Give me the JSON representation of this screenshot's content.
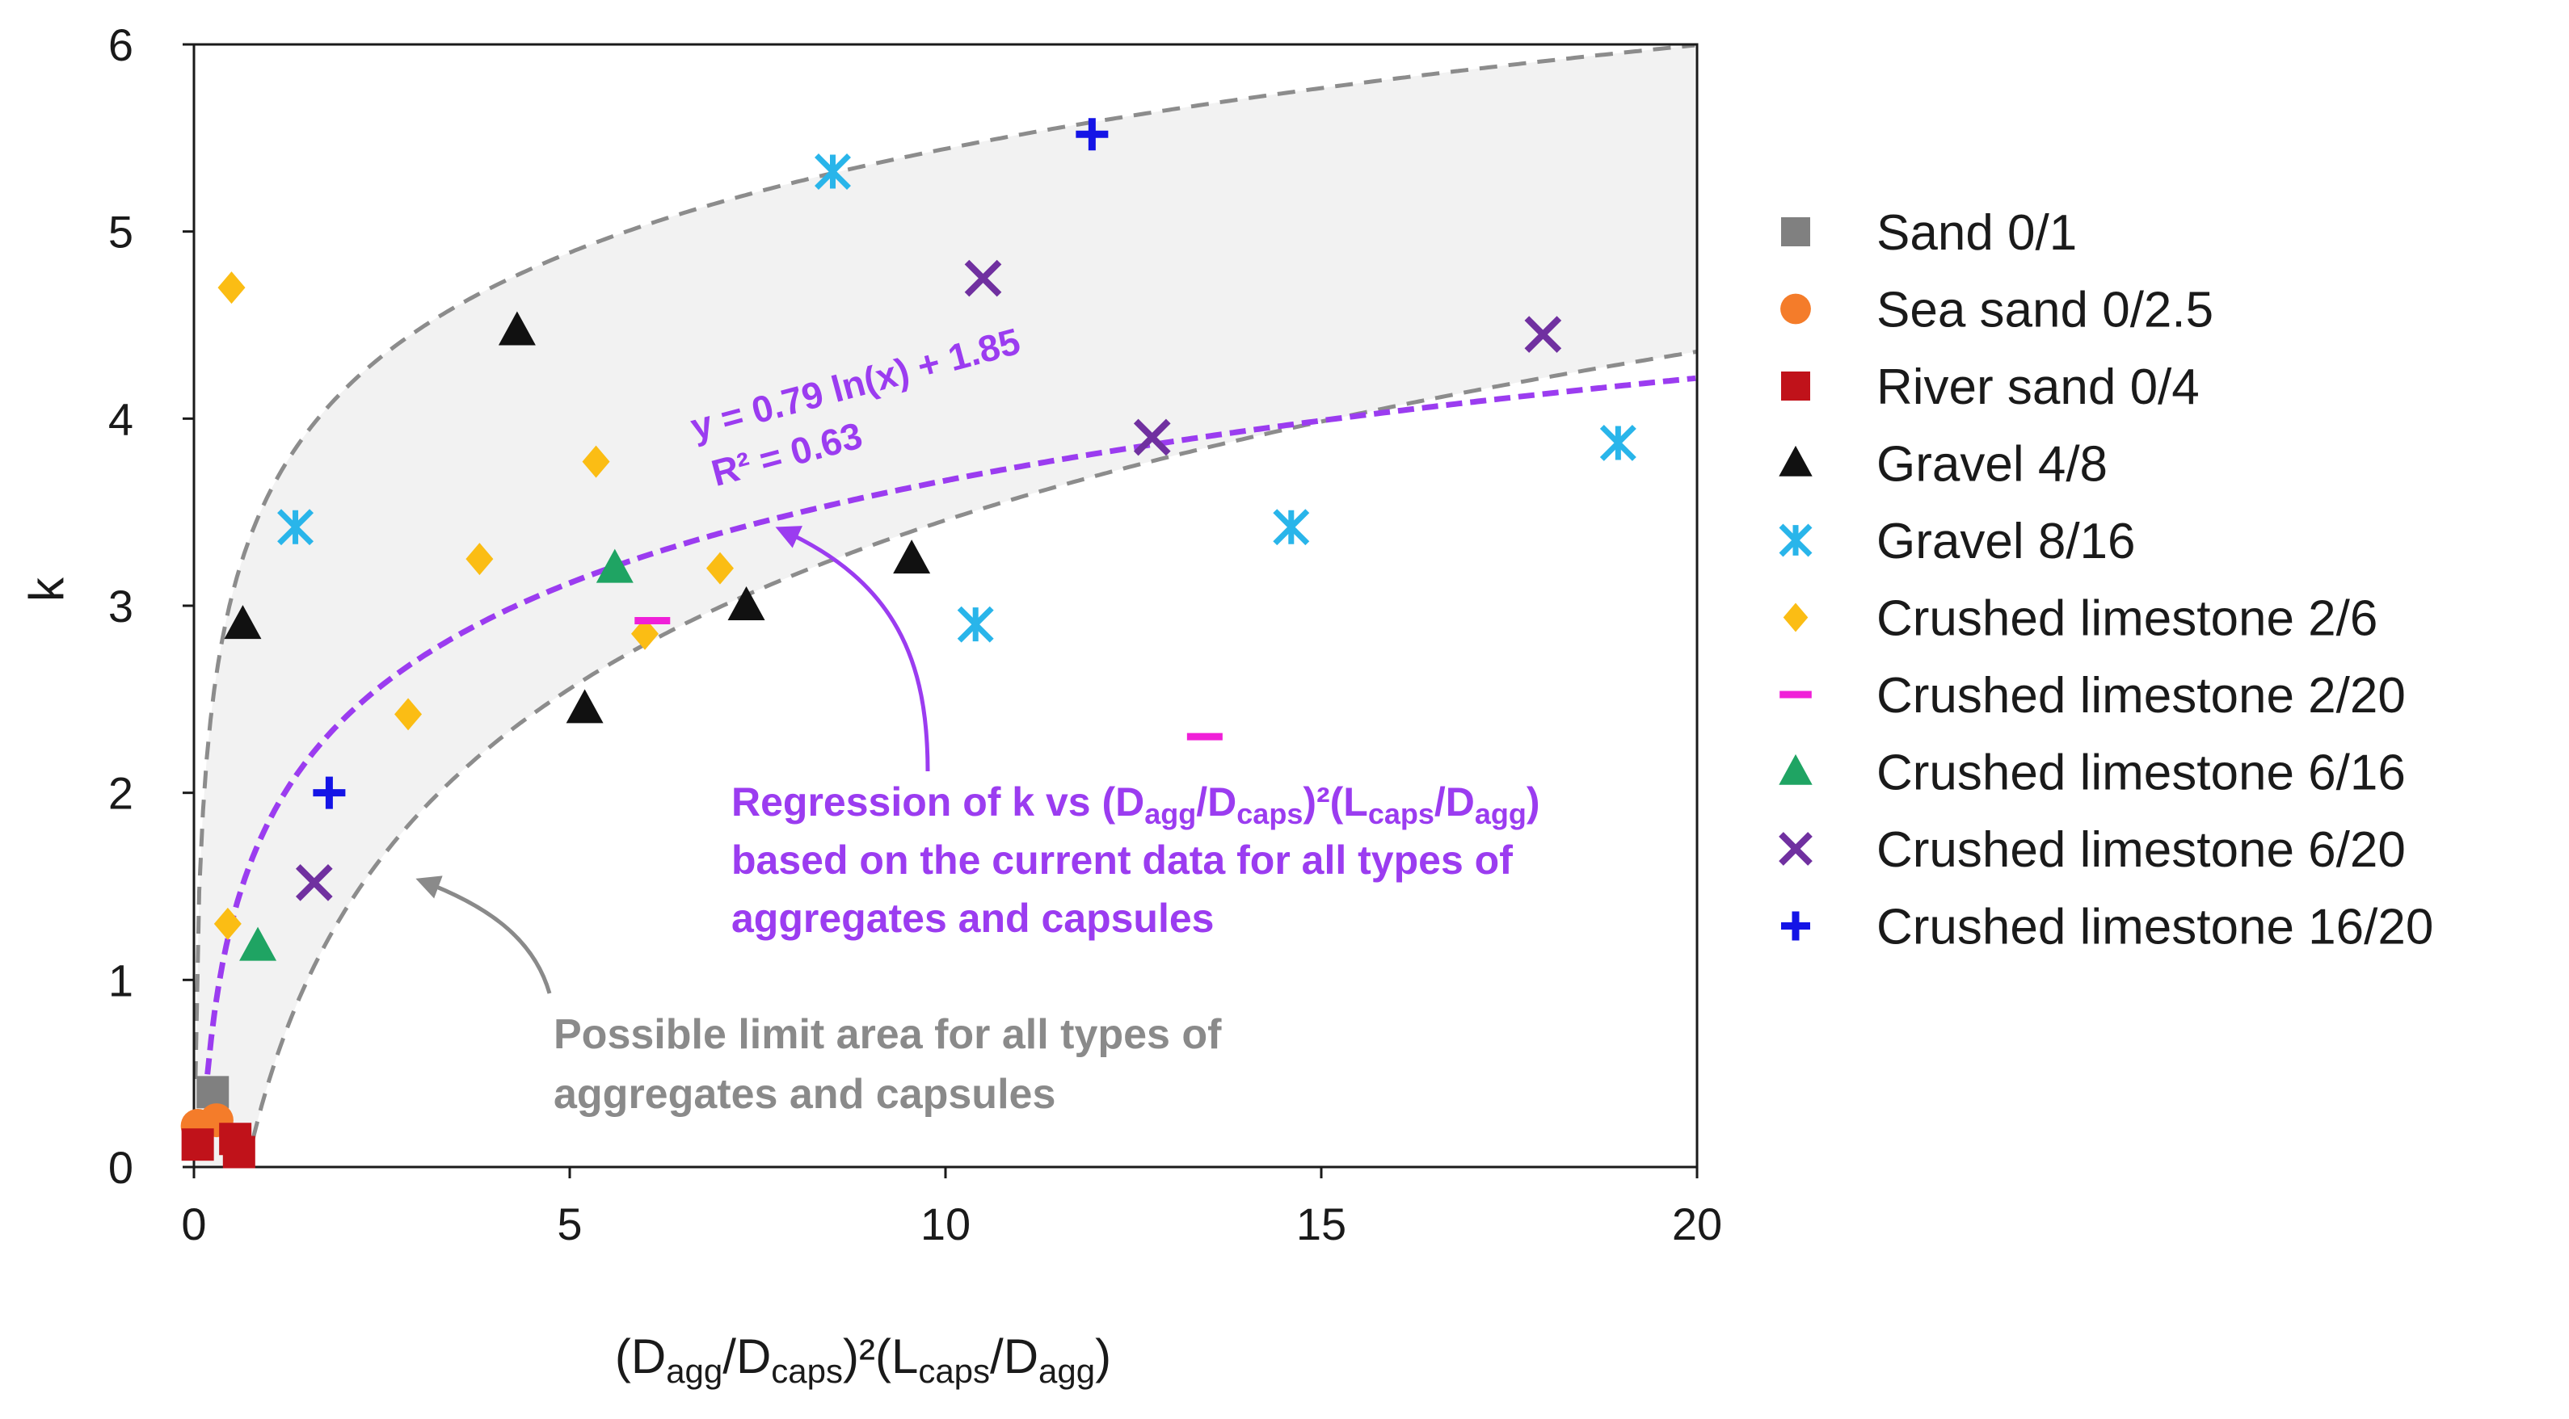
{
  "chart_data": {
    "type": "scatter",
    "title": "",
    "xlabel_parts": {
      "open": "(D",
      "agg1": "agg",
      "slash1": "/D",
      "caps1": "caps",
      "close1": ")²(L",
      "caps2": "caps",
      "slash2": "/D",
      "agg2": "agg",
      "close2": ")"
    },
    "ylabel": "k",
    "xlim": [
      0,
      20
    ],
    "ylim": [
      0,
      6
    ],
    "xticks": [
      "0",
      "5",
      "10",
      "15",
      "20"
    ],
    "yticks": [
      "0",
      "1",
      "2",
      "3",
      "4",
      "5",
      "6"
    ],
    "grid": false,
    "legend_position": "right",
    "series": [
      {
        "name": "Sand 0/1",
        "marker": "square",
        "color": "#808080",
        "points": [
          [
            0.25,
            0.4
          ]
        ]
      },
      {
        "name": "Sea sand 0/2.5",
        "marker": "circle",
        "color": "#f47c2a",
        "points": [
          [
            0.05,
            0.22
          ],
          [
            0.3,
            0.25
          ]
        ]
      },
      {
        "name": "River sand 0/4",
        "marker": "square",
        "color": "#c0121a",
        "points": [
          [
            0.05,
            0.12
          ],
          [
            0.55,
            0.15
          ],
          [
            0.6,
            0.08
          ]
        ]
      },
      {
        "name": "Gravel 4/8",
        "marker": "triangle",
        "color": "#111111",
        "points": [
          [
            0.65,
            2.9
          ],
          [
            4.3,
            4.47
          ],
          [
            5.2,
            2.45
          ],
          [
            7.35,
            3.0
          ],
          [
            9.55,
            3.25
          ]
        ]
      },
      {
        "name": "Gravel 8/16",
        "marker": "asterisk",
        "color": "#29b5ea",
        "points": [
          [
            1.35,
            3.42
          ],
          [
            8.5,
            5.32
          ],
          [
            10.4,
            2.9
          ],
          [
            14.6,
            3.42
          ],
          [
            18.95,
            3.87
          ]
        ]
      },
      {
        "name": "Crushed limestone 2/6",
        "marker": "diamond",
        "color": "#fbbd14",
        "points": [
          [
            0.5,
            4.7
          ],
          [
            0.45,
            1.3
          ],
          [
            2.85,
            2.42
          ],
          [
            3.8,
            3.25
          ],
          [
            5.35,
            3.77
          ],
          [
            6.0,
            2.85
          ],
          [
            7.0,
            3.2
          ]
        ]
      },
      {
        "name": "Crushed limestone 2/20",
        "marker": "dash",
        "color": "#f020d8",
        "points": [
          [
            6.1,
            2.92
          ],
          [
            13.45,
            2.3
          ]
        ]
      },
      {
        "name": "Crushed limestone 6/16",
        "marker": "triangle",
        "color": "#1fa463",
        "points": [
          [
            0.85,
            1.18
          ],
          [
            5.6,
            3.2
          ]
        ]
      },
      {
        "name": "Crushed limestone 6/20",
        "marker": "x",
        "color": "#7030a0",
        "points": [
          [
            1.6,
            1.52
          ],
          [
            10.5,
            4.75
          ],
          [
            12.75,
            3.9
          ],
          [
            17.95,
            4.45
          ]
        ]
      },
      {
        "name": "Crushed limestone 16/20",
        "marker": "plus",
        "color": "#1414e6",
        "points": [
          [
            1.8,
            2.0
          ],
          [
            11.95,
            5.52
          ]
        ]
      }
    ],
    "regression": {
      "equation": "y = 0.79 ln(x) + 1.85",
      "r2": "R² = 0.63",
      "slope": 0.79,
      "intercept": 1.85,
      "color": "#9b3cf0"
    },
    "limit_bounds": {
      "upper": {
        "a": 0.8,
        "b": 3.6
      },
      "lower": {
        "a": 1.3,
        "b": 0.25,
        "x0": 0.7
      },
      "line_color": "#8c8c8c",
      "fill_color": "#f2f2f2"
    },
    "annotations": {
      "regression_line1_a": "Regression of k vs (D",
      "regression_line1_agg": "agg",
      "regression_line1_b": "/D",
      "regression_line1_caps": "caps",
      "regression_line1_c": ")²(L",
      "regression_line1_caps2": "caps",
      "regression_line1_d": "/D",
      "regression_line1_agg2": "agg",
      "regression_line1_e": ")",
      "regression_line2": "based on the current data for all types of",
      "regression_line3": "aggregates and capsules",
      "limit_line1": "Possible limit area for all types of",
      "limit_line2": "aggregates and capsules"
    }
  }
}
